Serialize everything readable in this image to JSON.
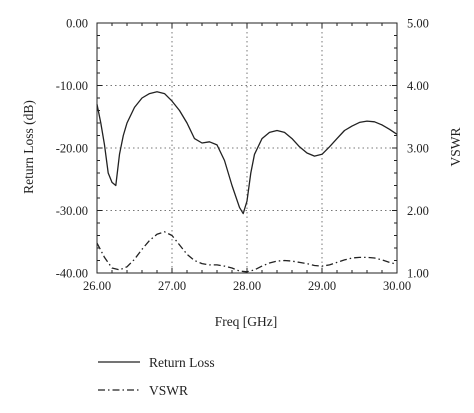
{
  "chart_data": {
    "type": "line",
    "title": "",
    "xlabel": "Freq [GHz]",
    "ylabel": "Return Loss (dB)",
    "y2label": "VSWR",
    "xlim": [
      26.0,
      30.0
    ],
    "ylim": [
      -40.0,
      0.0
    ],
    "y2lim": [
      1.0,
      5.0
    ],
    "xticks": [
      "26.00",
      "27.00",
      "28.00",
      "29.00",
      "30.00"
    ],
    "yticks": [
      "0.00",
      "-10.00",
      "-20.00",
      "-30.00",
      "-40.00"
    ],
    "y2ticks": [
      "5.00",
      "4.00",
      "3.00",
      "2.00",
      "1.00"
    ],
    "grid": true,
    "legend_position": "bottom",
    "series": [
      {
        "name": "Return Loss",
        "axis": "left",
        "style": "solid",
        "x": [
          26.0,
          26.05,
          26.1,
          26.15,
          26.2,
          26.25,
          26.3,
          26.35,
          26.4,
          26.5,
          26.6,
          26.7,
          26.8,
          26.9,
          27.0,
          27.1,
          27.2,
          27.3,
          27.4,
          27.5,
          27.6,
          27.7,
          27.8,
          27.9,
          27.95,
          28.0,
          28.05,
          28.1,
          28.2,
          28.3,
          28.4,
          28.5,
          28.6,
          28.7,
          28.8,
          28.9,
          29.0,
          29.1,
          29.2,
          29.3,
          29.4,
          29.5,
          29.6,
          29.7,
          29.8,
          29.9,
          30.0
        ],
        "values": [
          -13.0,
          -16.0,
          -19.5,
          -24.0,
          -25.5,
          -26.0,
          -21.0,
          -18.0,
          -16.0,
          -13.5,
          -12.0,
          -11.3,
          -11.0,
          -11.3,
          -12.5,
          -14.0,
          -16.0,
          -18.5,
          -19.2,
          -19.0,
          -19.5,
          -22.0,
          -26.0,
          -29.5,
          -30.5,
          -28.5,
          -24.0,
          -21.0,
          -18.5,
          -17.5,
          -17.2,
          -17.5,
          -18.5,
          -19.8,
          -20.8,
          -21.3,
          -21.0,
          -19.8,
          -18.5,
          -17.2,
          -16.5,
          -15.9,
          -15.7,
          -15.8,
          -16.3,
          -17.0,
          -17.8
        ]
      },
      {
        "name": "VSWR",
        "axis": "right",
        "style": "dash-dot",
        "x": [
          26.0,
          26.1,
          26.2,
          26.3,
          26.4,
          26.5,
          26.6,
          26.7,
          26.8,
          26.9,
          27.0,
          27.1,
          27.2,
          27.3,
          27.4,
          27.5,
          27.6,
          27.7,
          27.8,
          27.9,
          28.0,
          28.1,
          28.2,
          28.3,
          28.4,
          28.5,
          28.6,
          28.7,
          28.8,
          28.9,
          29.0,
          29.1,
          29.2,
          29.3,
          29.4,
          29.5,
          29.6,
          29.7,
          29.8,
          29.9,
          30.0
        ],
        "values": [
          1.48,
          1.25,
          1.08,
          1.05,
          1.1,
          1.22,
          1.38,
          1.52,
          1.62,
          1.66,
          1.6,
          1.45,
          1.3,
          1.2,
          1.15,
          1.13,
          1.13,
          1.11,
          1.08,
          1.03,
          1.02,
          1.05,
          1.11,
          1.16,
          1.19,
          1.2,
          1.19,
          1.17,
          1.15,
          1.12,
          1.11,
          1.13,
          1.17,
          1.21,
          1.24,
          1.25,
          1.25,
          1.24,
          1.21,
          1.17,
          1.14
        ]
      }
    ]
  }
}
